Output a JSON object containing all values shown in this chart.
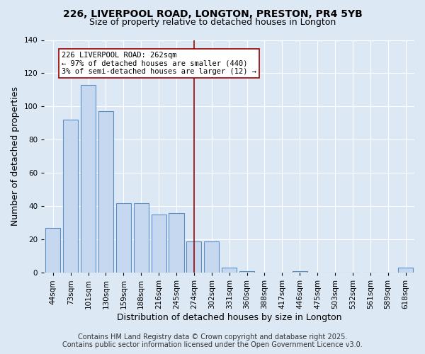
{
  "title": "226, LIVERPOOL ROAD, LONGTON, PRESTON, PR4 5YB",
  "subtitle": "Size of property relative to detached houses in Longton",
  "xlabel": "Distribution of detached houses by size in Longton",
  "ylabel": "Number of detached properties",
  "footer_lines": [
    "Contains HM Land Registry data © Crown copyright and database right 2025.",
    "Contains public sector information licensed under the Open Government Licence v3.0."
  ],
  "categories": [
    "44sqm",
    "73sqm",
    "101sqm",
    "130sqm",
    "159sqm",
    "188sqm",
    "216sqm",
    "245sqm",
    "274sqm",
    "302sqm",
    "331sqm",
    "360sqm",
    "388sqm",
    "417sqm",
    "446sqm",
    "475sqm",
    "503sqm",
    "532sqm",
    "561sqm",
    "589sqm",
    "618sqm"
  ],
  "values": [
    27,
    92,
    113,
    97,
    42,
    42,
    35,
    36,
    19,
    19,
    3,
    1,
    0,
    0,
    1,
    0,
    0,
    0,
    0,
    0,
    3
  ],
  "bar_color": "#c5d8ef",
  "bar_edge_color": "#5b8ec4",
  "highlight_index": 8,
  "highlight_color": "#990000",
  "ylim": [
    0,
    140
  ],
  "yticks": [
    0,
    20,
    40,
    60,
    80,
    100,
    120,
    140
  ],
  "annotation_text": "226 LIVERPOOL ROAD: 262sqm\n← 97% of detached houses are smaller (440)\n3% of semi-detached houses are larger (12) →",
  "annotation_box_color": "#ffffff",
  "annotation_border_color": "#990000",
  "title_fontsize": 10,
  "subtitle_fontsize": 9,
  "xlabel_fontsize": 9,
  "ylabel_fontsize": 9,
  "tick_fontsize": 7.5,
  "footer_fontsize": 7,
  "background_color": "#dde8f5",
  "plot_bg_color": "#dde8f5",
  "grid_color": "#ffffff"
}
